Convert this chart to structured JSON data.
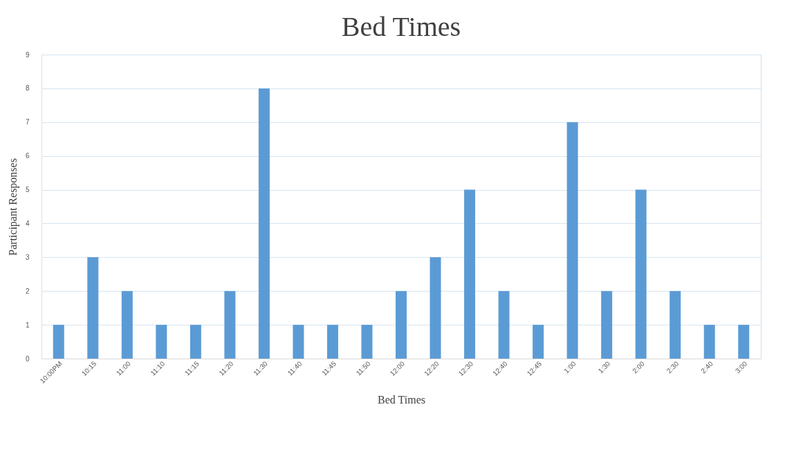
{
  "chart_data": {
    "type": "bar",
    "title": "Bed Times",
    "xlabel": "Bed Times",
    "ylabel": "Participant Responses",
    "categories": [
      "10:00PM",
      "10:15",
      "11:00",
      "11:10",
      "11:15",
      "11:20",
      "11:30",
      "11:40",
      "11:45",
      "11:50",
      "12:00",
      "12:20",
      "12:30",
      "12:40",
      "12:45",
      "1:00",
      "1:30",
      "2:00",
      "2:30",
      "2:40",
      "3:00"
    ],
    "values": [
      1,
      3,
      2,
      1,
      1,
      2,
      8,
      1,
      1,
      1,
      2,
      3,
      5,
      2,
      1,
      7,
      2,
      5,
      2,
      1,
      1
    ],
    "color": "#5b9bd5",
    "ylim": [
      0,
      9
    ],
    "yticks": [
      0,
      1,
      2,
      3,
      4,
      5,
      6,
      7,
      8,
      9
    ],
    "grid": "y"
  }
}
